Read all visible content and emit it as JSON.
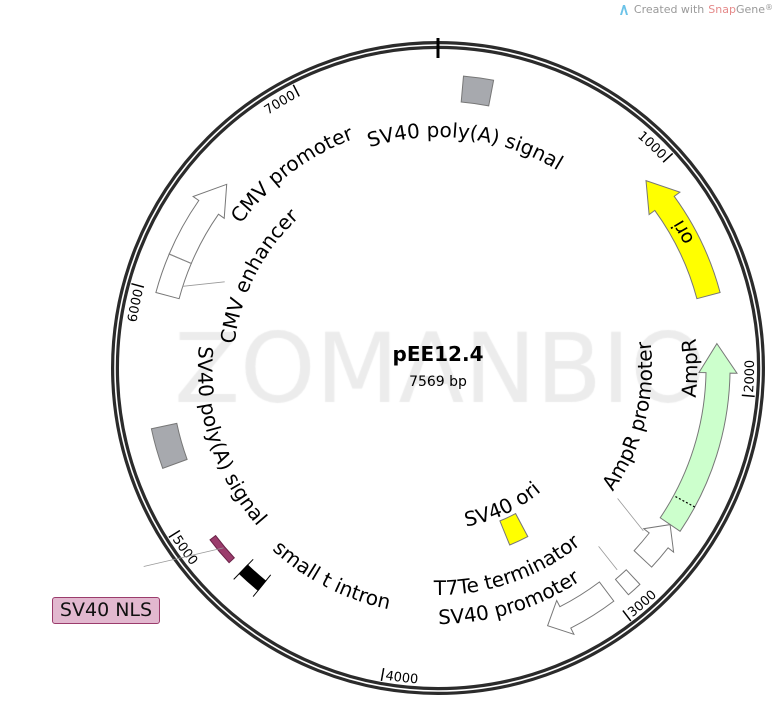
{
  "credit": {
    "prefix": "Created with ",
    "brand_a": "Snap",
    "brand_b": "Gene",
    "reg": "®",
    "icon": "snapgene-logo-icon"
  },
  "watermark": "ZOMANBIO",
  "plasmid": {
    "name": "pEE12.4",
    "length_label": "7569 bp",
    "length_bp": 7569
  },
  "ticks": [
    "1000",
    "2000",
    "3000",
    "4000",
    "5000",
    "6000",
    "7000"
  ],
  "features": [
    {
      "name": "SV40 poly(A) signal",
      "type": "box",
      "start": 105,
      "end": 230,
      "color": "#a7a9ae",
      "label": "SV40 poly(A) signal"
    },
    {
      "name": "ori",
      "type": "arrow",
      "dir": "ccw",
      "start": 1009,
      "end": 1577,
      "color": "#ffff00",
      "label": "ori"
    },
    {
      "name": "AmpR",
      "type": "arrow",
      "dir": "ccw",
      "start": 1787,
      "end": 2607,
      "color": "#ccffcc",
      "label": "AmpR"
    },
    {
      "name": "AmpR promoter",
      "type": "arrow",
      "dir": "ccw",
      "start": 2607,
      "end": 2796,
      "color": "#ffffff",
      "label": "AmpR promoter"
    },
    {
      "name": "T7Te terminator",
      "type": "box",
      "start": 2880,
      "end": 2943,
      "color": "#ffffff",
      "label": "T7Te terminator"
    },
    {
      "name": "SV40 promoter",
      "type": "arrow",
      "dir": "cw",
      "start": 3006,
      "end": 3300,
      "color": "#ffffff",
      "label": "SV40 promoter"
    },
    {
      "name": "SV40 ori",
      "type": "box",
      "start": 3195,
      "end": 3321,
      "color": "#ffff00",
      "label": "SV40 ori"
    },
    {
      "name": "small t intron",
      "type": "intron",
      "start": 4604,
      "end": 4710,
      "color": "#000000",
      "label": "small t intron"
    },
    {
      "name": "SV40 NLS",
      "type": "thin",
      "start": 4773,
      "end": 4899,
      "color": "#9b3c6c",
      "label": "SV40 NLS"
    },
    {
      "name": "SV40 poly(A) signal",
      "type": "box",
      "start": 5256,
      "end": 5425,
      "color": "#a7a9ae",
      "label": "SV40 poly(A) signal"
    },
    {
      "name": "CMV enhancer",
      "type": "arrow-part",
      "start": 5992,
      "end": 6160,
      "color": "#ffffff",
      "label": "CMV enhancer"
    },
    {
      "name": "CMV promoter",
      "type": "arrow",
      "dir": "cw",
      "start": 6160,
      "end": 6539,
      "color": "#ffffff",
      "label": "CMV promoter"
    }
  ]
}
